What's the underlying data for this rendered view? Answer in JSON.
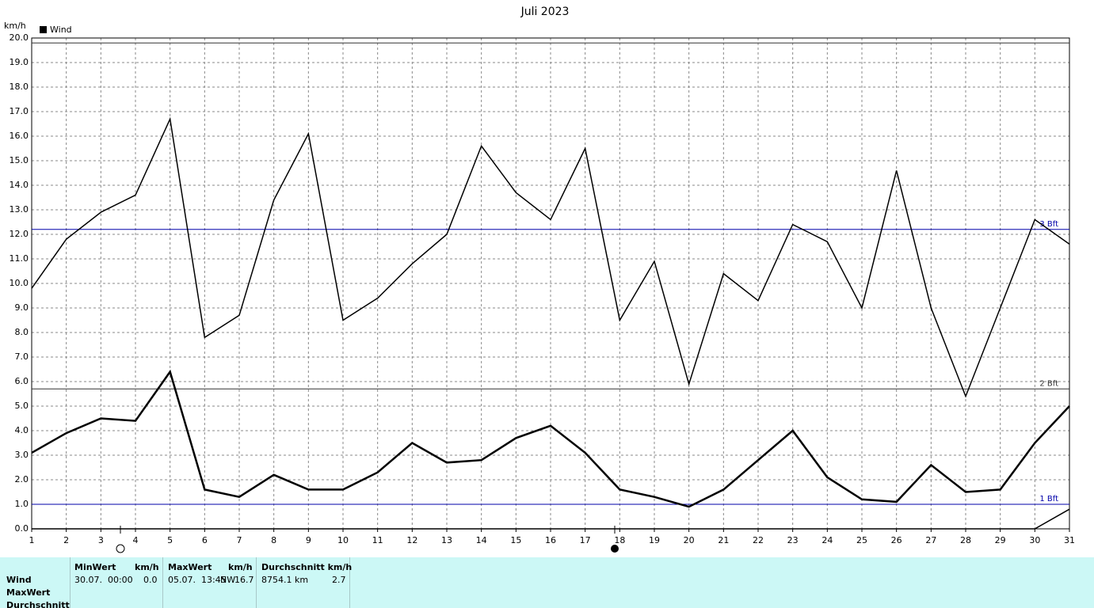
{
  "chart_data": {
    "type": "line",
    "title": "Juli 2023",
    "y_label": "km/h",
    "categories": [
      "1",
      "2",
      "3",
      "4",
      "5",
      "6",
      "7",
      "8",
      "9",
      "10",
      "11",
      "12",
      "13",
      "14",
      "15",
      "16",
      "17",
      "18",
      "19",
      "20",
      "21",
      "22",
      "23",
      "24",
      "25",
      "26",
      "27",
      "28",
      "29",
      "30",
      "31"
    ],
    "series": [
      {
        "name": "Wind",
        "color": "#000000",
        "width": 2.5,
        "values": [
          3.1,
          3.9,
          4.5,
          4.4,
          6.4,
          1.6,
          1.3,
          2.2,
          1.6,
          1.6,
          2.3,
          3.5,
          2.7,
          2.8,
          3.7,
          4.2,
          3.1,
          1.6,
          1.3,
          0.9,
          1.6,
          2.8,
          4.0,
          2.1,
          1.2,
          1.1,
          2.6,
          1.5,
          1.6,
          3.5,
          5.0
        ]
      },
      {
        "color": "#000000",
        "width": 1.5,
        "values": [
          9.8,
          11.8,
          12.9,
          13.6,
          16.7,
          7.8,
          8.7,
          13.4,
          16.1,
          8.5,
          9.4,
          10.8,
          12.0,
          15.6,
          13.7,
          12.6,
          15.5,
          8.5,
          10.9,
          5.9,
          10.4,
          9.3,
          12.4,
          11.7,
          9.0,
          14.6,
          9.0,
          5.4,
          9.0,
          12.6,
          11.6
        ]
      },
      {
        "color": "#000000",
        "width": 1.5,
        "values": [
          0,
          0,
          0,
          0,
          0,
          0,
          0,
          0,
          0,
          0,
          0,
          0,
          0,
          0,
          0,
          0,
          0,
          0,
          0,
          0,
          0,
          0,
          0,
          0,
          0,
          0,
          0,
          0,
          0,
          0,
          0.8
        ]
      }
    ],
    "reference_lines": [
      {
        "value": 19.8,
        "color": "#333333"
      },
      {
        "value": 12.2,
        "label": "3 Bft",
        "color": "#0000aa"
      },
      {
        "value": 5.7,
        "label": "2 Bft",
        "color": "#333333"
      },
      {
        "value": 1.0,
        "label": "1 Bft",
        "color": "#0000aa"
      }
    ],
    "ylim": [
      0,
      20
    ],
    "yticks": [
      {
        "value": 0,
        "label": "0.0"
      },
      {
        "value": 1,
        "label": "1.0"
      },
      {
        "value": 2,
        "label": "2.0"
      },
      {
        "value": 3,
        "label": "3.0"
      },
      {
        "value": 4,
        "label": "4.0"
      },
      {
        "value": 5,
        "label": "5.0"
      },
      {
        "value": 6,
        "label": "6.0"
      },
      {
        "value": 7,
        "label": "7.0"
      },
      {
        "value": 8,
        "label": "8.0"
      },
      {
        "value": 9,
        "label": "9.0"
      },
      {
        "value": 10,
        "label": "10.0"
      },
      {
        "value": 11,
        "label": "11.0"
      },
      {
        "value": 12,
        "label": "12.0"
      },
      {
        "value": 13,
        "label": "13.0"
      },
      {
        "value": 14,
        "label": "14.0"
      },
      {
        "value": 15,
        "label": "15.0"
      },
      {
        "value": 16,
        "label": "16.0"
      },
      {
        "value": 17,
        "label": "17.0"
      },
      {
        "value": 18,
        "label": "18.0"
      },
      {
        "value": 19,
        "label": "19.0"
      },
      {
        "value": 20,
        "label": "20.0"
      }
    ],
    "grid": true,
    "legend": "top-left"
  },
  "stats": {
    "row_labels": [
      "Wind",
      "MaxWert",
      "Durchschnitt"
    ],
    "columns": [
      {
        "header": "MinWert",
        "unit": "km/h",
        "time": "30.07.  00:00",
        "value": "0.0"
      },
      {
        "header": "MaxWert",
        "unit": "km/h",
        "time": "05.07.  13:45",
        "dir": "NW",
        "value": "16.7"
      },
      {
        "header": "Durchschnitt km/h",
        "time": "8754.1 km",
        "value": "2.7"
      }
    ]
  }
}
